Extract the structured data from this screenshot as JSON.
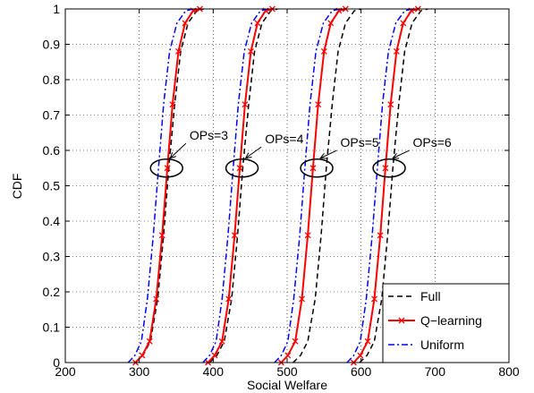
{
  "chart_data": {
    "type": "line",
    "title": "",
    "xlabel": "Social Welfare",
    "ylabel": "CDF",
    "xlim": [
      200,
      800
    ],
    "ylim": [
      0,
      1
    ],
    "xticks": [
      200,
      300,
      400,
      500,
      600,
      700,
      800
    ],
    "yticks": [
      0,
      0.1,
      0.2,
      0.3,
      0.4,
      0.5,
      0.6,
      0.7,
      0.8,
      0.9,
      1
    ],
    "grid": true,
    "legend_position": "bottom-right",
    "series": [
      {
        "name": "Full",
        "color": "#000000",
        "style": "dashed",
        "marker": "none",
        "groups": [
          {
            "x": [
              295,
              305,
              315,
              325,
              333,
              340,
              348,
              356,
              366,
              378,
              387
            ],
            "y": [
              0.0,
              0.02,
              0.06,
              0.18,
              0.36,
              0.55,
              0.73,
              0.88,
              0.96,
              0.995,
              1.0
            ]
          },
          {
            "x": [
              395,
              405,
              415,
              425,
              433,
              440,
              448,
              456,
              466,
              478,
              487
            ],
            "y": [
              0.0,
              0.02,
              0.06,
              0.18,
              0.36,
              0.55,
              0.73,
              0.88,
              0.96,
              0.995,
              1.0
            ]
          },
          {
            "x": [
              508,
              518,
              528,
              538,
              546,
              553,
              561,
              569,
              579,
              591,
              600
            ],
            "y": [
              0.0,
              0.02,
              0.06,
              0.18,
              0.36,
              0.55,
              0.73,
              0.88,
              0.96,
              0.995,
              1.0
            ]
          },
          {
            "x": [
              598,
              608,
              618,
              628,
              636,
              643,
              651,
              659,
              669,
              681,
              690
            ],
            "y": [
              0.0,
              0.02,
              0.06,
              0.18,
              0.36,
              0.55,
              0.73,
              0.88,
              0.96,
              0.995,
              1.0
            ]
          }
        ]
      },
      {
        "name": "Q−learning",
        "color": "#ff0000",
        "style": "solid",
        "marker": "x",
        "groups": [
          {
            "x": [
              295,
              304,
              314,
              323,
              331,
              338,
              345,
              353,
              362,
              373,
              382
            ],
            "y": [
              0.0,
              0.02,
              0.06,
              0.18,
              0.36,
              0.55,
              0.73,
              0.88,
              0.96,
              0.995,
              1.0
            ]
          },
          {
            "x": [
              393,
              402,
              412,
              421,
              429,
              436,
              443,
              451,
              460,
              471,
              480
            ],
            "y": [
              0.0,
              0.02,
              0.06,
              0.18,
              0.36,
              0.55,
              0.73,
              0.88,
              0.96,
              0.995,
              1.0
            ]
          },
          {
            "x": [
              492,
              501,
              511,
              520,
              528,
              535,
              542,
              550,
              559,
              570,
              579
            ],
            "y": [
              0.0,
              0.02,
              0.06,
              0.18,
              0.36,
              0.55,
              0.73,
              0.88,
              0.96,
              0.995,
              1.0
            ]
          },
          {
            "x": [
              590,
              599,
              609,
              618,
              626,
              633,
              640,
              648,
              657,
              668,
              677
            ],
            "y": [
              0.0,
              0.02,
              0.06,
              0.18,
              0.36,
              0.55,
              0.73,
              0.88,
              0.96,
              0.995,
              1.0
            ]
          }
        ]
      },
      {
        "name": "Uniform",
        "color": "#0000ff",
        "style": "dashdot",
        "marker": "none",
        "groups": [
          {
            "x": [
              285,
              294,
              303,
              311,
              319,
              326,
              333,
              341,
              351,
              363,
              373
            ],
            "y": [
              0.0,
              0.02,
              0.06,
              0.18,
              0.36,
              0.55,
              0.73,
              0.88,
              0.96,
              0.995,
              1.0
            ]
          },
          {
            "x": [
              386,
              395,
              404,
              412,
              420,
              427,
              434,
              442,
              452,
              464,
              474
            ],
            "y": [
              0.0,
              0.02,
              0.06,
              0.18,
              0.36,
              0.55,
              0.73,
              0.88,
              0.96,
              0.995,
              1.0
            ]
          },
          {
            "x": [
              483,
              492,
              501,
              509,
              517,
              524,
              531,
              539,
              549,
              561,
              571
            ],
            "y": [
              0.0,
              0.02,
              0.06,
              0.18,
              0.36,
              0.55,
              0.73,
              0.88,
              0.96,
              0.995,
              1.0
            ]
          },
          {
            "x": [
              581,
              590,
              599,
              607,
              615,
              622,
              629,
              637,
              647,
              659,
              669
            ],
            "y": [
              0.0,
              0.02,
              0.06,
              0.18,
              0.36,
              0.55,
              0.73,
              0.88,
              0.96,
              0.995,
              1.0
            ]
          }
        ]
      }
    ],
    "annotations": [
      {
        "text": "OPs=3",
        "ellipse_center": [
          337,
          0.55
        ],
        "text_anchor": [
          368,
          0.63
        ]
      },
      {
        "text": "OPs=4",
        "ellipse_center": [
          439,
          0.55
        ],
        "text_anchor": [
          470,
          0.62
        ]
      },
      {
        "text": "OPs=5",
        "ellipse_center": [
          540,
          0.55
        ],
        "text_anchor": [
          572,
          0.61
        ]
      },
      {
        "text": "OPs=6",
        "ellipse_center": [
          638,
          0.55
        ],
        "text_anchor": [
          670,
          0.61
        ]
      }
    ]
  }
}
